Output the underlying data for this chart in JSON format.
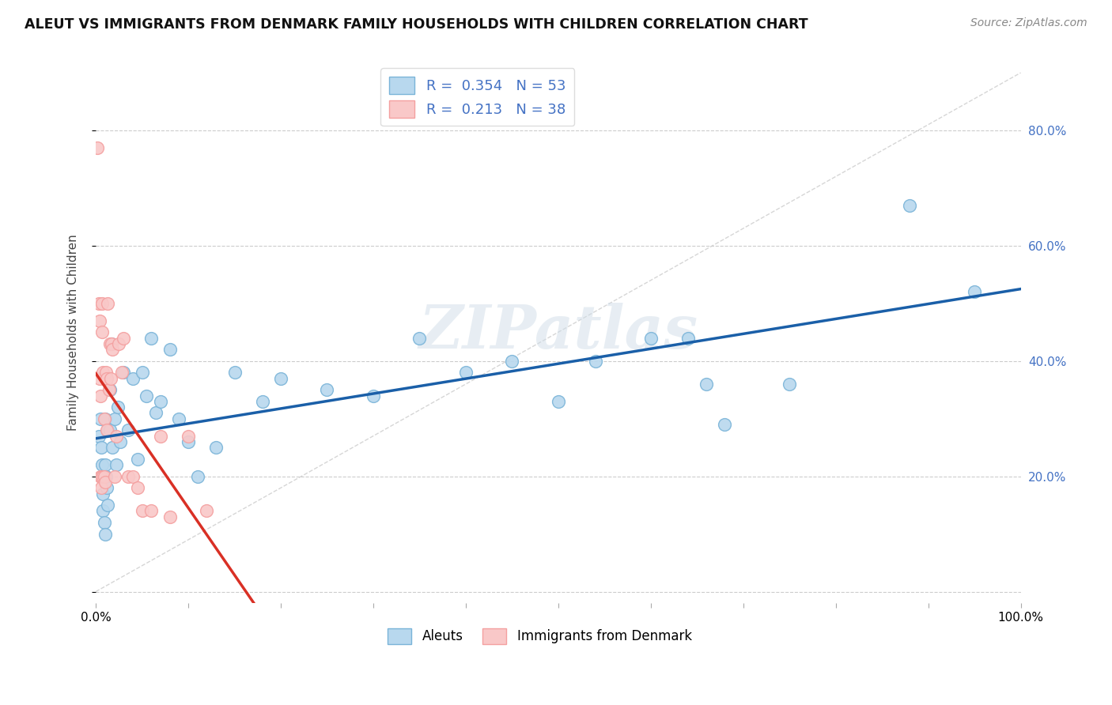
{
  "title": "ALEUT VS IMMIGRANTS FROM DENMARK FAMILY HOUSEHOLDS WITH CHILDREN CORRELATION CHART",
  "source": "Source: ZipAtlas.com",
  "xlabel": "",
  "ylabel": "Family Households with Children",
  "xmin": 0.0,
  "xmax": 1.0,
  "ymin": -0.02,
  "ymax": 0.92,
  "blue_color": "#7ab4d8",
  "pink_color": "#f4a0a0",
  "blue_fill": "#b8d8ee",
  "pink_fill": "#f9c8c8",
  "line_blue": "#1a5fa8",
  "line_pink": "#d93025",
  "legend_R1": "0.354",
  "legend_N1": "53",
  "legend_R2": "0.213",
  "legend_N2": "38",
  "watermark": "ZIPatlas",
  "right_tick_color": "#4472c4",
  "aleuts_x": [
    0.003,
    0.005,
    0.006,
    0.007,
    0.008,
    0.008,
    0.009,
    0.01,
    0.01,
    0.01,
    0.011,
    0.012,
    0.013,
    0.013,
    0.015,
    0.015,
    0.017,
    0.018,
    0.02,
    0.022,
    0.024,
    0.026,
    0.03,
    0.035,
    0.04,
    0.045,
    0.05,
    0.055,
    0.06,
    0.065,
    0.07,
    0.08,
    0.09,
    0.1,
    0.11,
    0.13,
    0.15,
    0.18,
    0.2,
    0.25,
    0.3,
    0.35,
    0.4,
    0.45,
    0.5,
    0.54,
    0.6,
    0.64,
    0.66,
    0.68,
    0.75,
    0.88,
    0.95
  ],
  "aleuts_y": [
    0.27,
    0.3,
    0.25,
    0.22,
    0.17,
    0.14,
    0.12,
    0.3,
    0.22,
    0.1,
    0.2,
    0.18,
    0.28,
    0.15,
    0.35,
    0.28,
    0.43,
    0.25,
    0.3,
    0.22,
    0.32,
    0.26,
    0.38,
    0.28,
    0.37,
    0.23,
    0.38,
    0.34,
    0.44,
    0.31,
    0.33,
    0.42,
    0.3,
    0.26,
    0.2,
    0.25,
    0.38,
    0.33,
    0.37,
    0.35,
    0.34,
    0.44,
    0.38,
    0.4,
    0.33,
    0.4,
    0.44,
    0.44,
    0.36,
    0.29,
    0.36,
    0.67,
    0.52
  ],
  "denmark_x": [
    0.002,
    0.003,
    0.004,
    0.004,
    0.005,
    0.005,
    0.006,
    0.006,
    0.007,
    0.007,
    0.008,
    0.008,
    0.009,
    0.009,
    0.01,
    0.011,
    0.012,
    0.012,
    0.013,
    0.014,
    0.015,
    0.016,
    0.017,
    0.018,
    0.02,
    0.022,
    0.025,
    0.028,
    0.03,
    0.035,
    0.04,
    0.045,
    0.05,
    0.06,
    0.07,
    0.08,
    0.1,
    0.12
  ],
  "denmark_y": [
    0.77,
    0.5,
    0.47,
    0.37,
    0.34,
    0.2,
    0.2,
    0.18,
    0.5,
    0.45,
    0.38,
    0.2,
    0.3,
    0.2,
    0.19,
    0.38,
    0.37,
    0.28,
    0.5,
    0.35,
    0.43,
    0.37,
    0.43,
    0.42,
    0.2,
    0.27,
    0.43,
    0.38,
    0.44,
    0.2,
    0.2,
    0.18,
    0.14,
    0.14,
    0.27,
    0.13,
    0.27,
    0.14
  ]
}
